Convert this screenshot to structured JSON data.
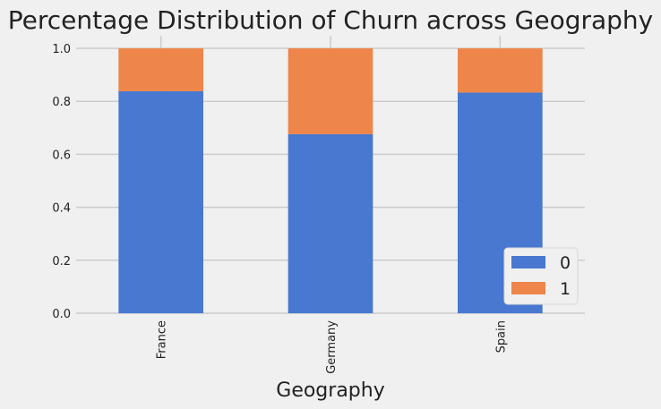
{
  "chart_data": {
    "type": "bar",
    "stacked": true,
    "title": "Percentage Distribution of Churn across Geography",
    "xlabel": "Geography",
    "ylabel": "",
    "categories": [
      "France",
      "Germany",
      "Spain"
    ],
    "series": [
      {
        "name": "0",
        "values": [
          0.838,
          0.676,
          0.833
        ],
        "color": "#4878d0"
      },
      {
        "name": "1",
        "values": [
          0.162,
          0.324,
          0.167
        ],
        "color": "#ee854a"
      }
    ],
    "ylim": [
      0,
      1.0
    ],
    "yticks": [
      "0.0",
      "0.2",
      "0.4",
      "0.6",
      "0.8",
      "1.0"
    ],
    "grid": true,
    "legend_position": "lower-right",
    "background": "#f0f0f0",
    "grid_color": "#cbcbcb"
  }
}
